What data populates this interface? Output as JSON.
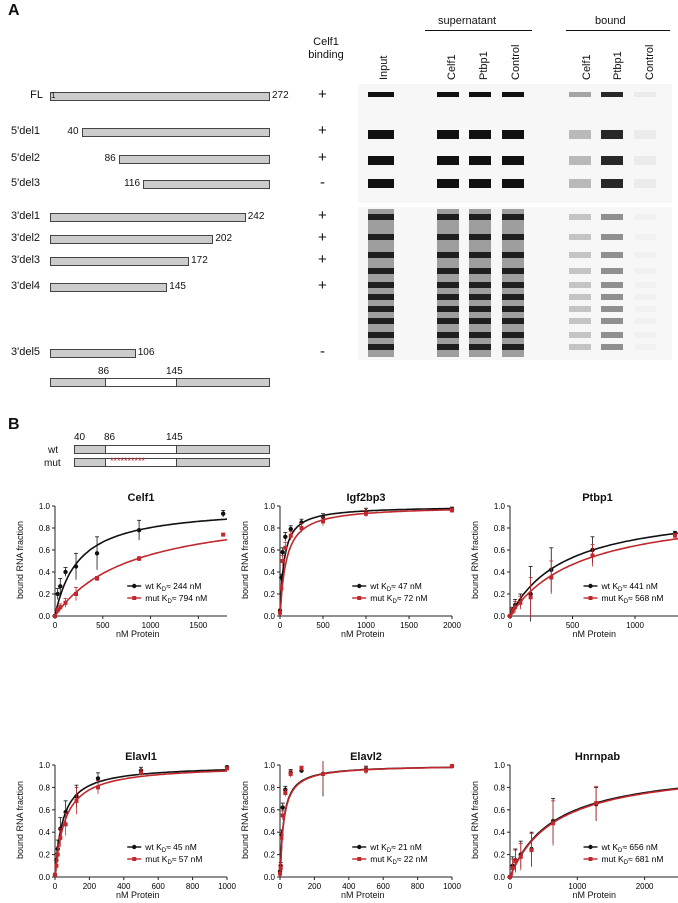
{
  "panel_a": {
    "letter": "A",
    "col_header_binding": "Celf1\nbinding",
    "constructs": [
      {
        "name": "FL",
        "start": 1,
        "end": 272,
        "start_label": "1",
        "end_label": "272",
        "binding": "+"
      },
      {
        "name": "5'del1",
        "start": 40,
        "end": 272,
        "start_label": "40",
        "end_label": "",
        "binding": "+"
      },
      {
        "name": "5'del2",
        "start": 86,
        "end": 272,
        "start_label": "86",
        "end_label": "",
        "binding": "+"
      },
      {
        "name": "5'del3",
        "start": 116,
        "end": 272,
        "start_label": "116",
        "end_label": "",
        "binding": "-"
      },
      {
        "name": "3'del1",
        "start": 1,
        "end": 242,
        "start_label": "",
        "end_label": "242",
        "binding": "+"
      },
      {
        "name": "3'del2",
        "start": 1,
        "end": 202,
        "start_label": "",
        "end_label": "202",
        "binding": "+"
      },
      {
        "name": "3'del3",
        "start": 1,
        "end": 172,
        "start_label": "",
        "end_label": "172",
        "binding": "+"
      },
      {
        "name": "3'del4",
        "start": 1,
        "end": 145,
        "start_label": "",
        "end_label": "145",
        "binding": "+"
      },
      {
        "name": "3'del5",
        "start": 1,
        "end": 106,
        "start_label": "",
        "end_label": "106",
        "binding": "-"
      }
    ],
    "summary_bar": {
      "left": "86",
      "right": "145"
    },
    "gel_headers": {
      "supernatant": "supernatant",
      "bound": "bound",
      "lanes": [
        "Input",
        "Celf1",
        "Ptbp1",
        "Control",
        "Celf1",
        "Ptbp1",
        "Control"
      ]
    }
  },
  "panel_b": {
    "letter": "B",
    "schema": {
      "wt_label": "wt",
      "mut_label": "mut",
      "pos1": "40",
      "pos2": "86",
      "pos3": "145",
      "mut_marks": "**********"
    },
    "colors": {
      "wt": "#111111",
      "mut": "#c0282d"
    },
    "xlabel": "nM Protein",
    "ylabel": "bound RNA fraction",
    "legend_wt": "wt",
    "legend_mut": "mut"
  },
  "chart_data": [
    {
      "type": "scatter",
      "title": "Celf1",
      "xlabel": "nM Protein",
      "ylabel": "bound RNA fraction",
      "xlim": [
        0,
        1800
      ],
      "ylim": [
        0,
        1.0
      ],
      "xticks": [
        0,
        500,
        1000,
        1500
      ],
      "yticks": [
        0,
        0.2,
        0.4,
        0.6,
        0.8,
        1.0
      ],
      "series": [
        {
          "name": "wt",
          "kd_text": "K",
          "kd_sub": "D",
          "kd_val": "≈ 244 nM",
          "kd": 244,
          "bmax": 1.0,
          "x": [
            0,
            28,
            55,
            110,
            220,
            440,
            880,
            1760
          ],
          "y": [
            0.0,
            0.2,
            0.27,
            0.4,
            0.45,
            0.57,
            0.78,
            0.93
          ],
          "err": [
            0,
            0.05,
            0.07,
            0.04,
            0.12,
            0.15,
            0.09,
            0.03
          ]
        },
        {
          "name": "mut",
          "kd_text": "K",
          "kd_sub": "D",
          "kd_val": "≈ 794 nM",
          "kd": 794,
          "bmax": 1.0,
          "x": [
            0,
            28,
            55,
            110,
            220,
            440,
            880,
            1760
          ],
          "y": [
            0.0,
            0.05,
            0.08,
            0.12,
            0.2,
            0.34,
            0.52,
            0.74
          ],
          "err": [
            0,
            0.02,
            0.03,
            0.04,
            0.06,
            0.02,
            0.02,
            0.01
          ]
        }
      ]
    },
    {
      "type": "scatter",
      "title": "Igf2bp3",
      "xlabel": "nM Protein",
      "ylabel": "bound RNA fraction",
      "xlim": [
        0,
        2000
      ],
      "ylim": [
        0,
        1.0
      ],
      "xticks": [
        0,
        500,
        1000,
        1500,
        2000
      ],
      "yticks": [
        0,
        0.2,
        0.4,
        0.6,
        0.8,
        1.0
      ],
      "series": [
        {
          "name": "wt",
          "kd_text": "K",
          "kd_sub": "D",
          "kd_val": "≈ 47 nM",
          "kd": 47,
          "bmax": 1.0,
          "x": [
            0,
            15,
            31,
            62,
            125,
            250,
            500,
            1000,
            2000
          ],
          "y": [
            0.05,
            0.35,
            0.58,
            0.72,
            0.79,
            0.85,
            0.9,
            0.95,
            0.97
          ],
          "err": [
            0,
            0.03,
            0.04,
            0.04,
            0.03,
            0.03,
            0.03,
            0.03,
            0.02
          ]
        },
        {
          "name": "mut",
          "kd_text": "K",
          "kd_sub": "D",
          "kd_val": "≈ 72 nM",
          "kd": 72,
          "bmax": 1.0,
          "x": [
            0,
            15,
            31,
            62,
            125,
            250,
            500,
            1000,
            2000
          ],
          "y": [
            0.03,
            0.25,
            0.5,
            0.62,
            0.73,
            0.8,
            0.86,
            0.93,
            0.96
          ],
          "err": [
            0,
            0.04,
            0.05,
            0.05,
            0.04,
            0.04,
            0.04,
            0.03,
            0.02
          ]
        }
      ]
    },
    {
      "type": "scatter",
      "title": "Ptbp1",
      "xlabel": "nM Protein",
      "ylabel": "bound RNA fraction",
      "xlim": [
        0,
        1400
      ],
      "ylim": [
        0,
        1.0
      ],
      "xticks": [
        0,
        500,
        1000
      ],
      "yticks": [
        0,
        0.2,
        0.4,
        0.6,
        0.8,
        1.0
      ],
      "series": [
        {
          "name": "wt",
          "kd_text": "K",
          "kd_sub": "D",
          "kd_val": "≈ 441 nM",
          "kd": 441,
          "bmax": 1.0,
          "x": [
            0,
            20,
            41,
            83,
            165,
            330,
            660,
            1320
          ],
          "y": [
            0.0,
            0.05,
            0.1,
            0.14,
            0.2,
            0.42,
            0.6,
            0.75
          ],
          "err": [
            0,
            0.03,
            0.05,
            0.06,
            0.25,
            0.2,
            0.12,
            0.02
          ]
        },
        {
          "name": "mut",
          "kd_text": "K",
          "kd_sub": "D",
          "kd_val": "≈ 568 nM",
          "kd": 568,
          "bmax": 1.0,
          "x": [
            0,
            20,
            41,
            83,
            165,
            330,
            660,
            1320
          ],
          "y": [
            0.0,
            0.04,
            0.08,
            0.12,
            0.17,
            0.35,
            0.55,
            0.73
          ],
          "err": [
            0,
            0.03,
            0.05,
            0.06,
            0.18,
            0.15,
            0.1,
            0.02
          ]
        }
      ]
    },
    {
      "type": "scatter",
      "title": "Elavl1",
      "xlabel": "nM Protein",
      "ylabel": "bound RNA fraction",
      "xlim": [
        0,
        1000
      ],
      "ylim": [
        0,
        1.0
      ],
      "xticks": [
        0,
        200,
        400,
        600,
        800,
        1000
      ],
      "yticks": [
        0,
        0.2,
        0.4,
        0.6,
        0.8,
        1.0
      ],
      "series": [
        {
          "name": "wt",
          "kd_text": "K",
          "kd_sub": "D",
          "kd_val": "≈ 45 nM",
          "kd": 45,
          "bmax": 1.0,
          "x": [
            0,
            8,
            16,
            31,
            62,
            125,
            250,
            500,
            1000
          ],
          "y": [
            0.02,
            0.15,
            0.25,
            0.43,
            0.58,
            0.72,
            0.88,
            0.95,
            0.98
          ],
          "err": [
            0,
            0.06,
            0.08,
            0.1,
            0.1,
            0.1,
            0.05,
            0.03,
            0.01
          ]
        },
        {
          "name": "mut",
          "kd_text": "K",
          "kd_sub": "D",
          "kd_val": "≈ 57 nM",
          "kd": 57,
          "bmax": 1.0,
          "x": [
            0,
            8,
            16,
            31,
            62,
            125,
            250,
            500,
            1000
          ],
          "y": [
            0.02,
            0.1,
            0.2,
            0.35,
            0.47,
            0.68,
            0.8,
            0.93,
            0.97
          ],
          "err": [
            0,
            0.05,
            0.07,
            0.08,
            0.1,
            0.12,
            0.06,
            0.03,
            0.01
          ]
        }
      ]
    },
    {
      "type": "scatter",
      "title": "Elavl2",
      "xlabel": "nM Protein",
      "ylabel": "bound RNA fraction",
      "xlim": [
        0,
        1000
      ],
      "ylim": [
        0,
        1.0
      ],
      "xticks": [
        0,
        200,
        400,
        600,
        800,
        1000
      ],
      "yticks": [
        0,
        0.2,
        0.4,
        0.6,
        0.8,
        1.0
      ],
      "series": [
        {
          "name": "wt",
          "kd_text": "K",
          "kd_sub": "D",
          "kd_val": "≈ 21 nM",
          "kd": 21,
          "bmax": 1.0,
          "x": [
            0,
            4,
            8,
            16,
            31,
            62,
            125,
            250,
            500,
            1000
          ],
          "y": [
            0.05,
            0.1,
            0.38,
            0.62,
            0.78,
            0.93,
            0.95,
            0.92,
            0.96,
            0.99
          ],
          "err": [
            0,
            0.03,
            0.04,
            0.04,
            0.03,
            0.03,
            0.02,
            0.2,
            0.03,
            0.01
          ]
        },
        {
          "name": "mut",
          "kd_text": "K",
          "kd_sub": "D",
          "kd_val": "≈ 22 nM",
          "kd": 22,
          "bmax": 1.0,
          "x": [
            0,
            4,
            8,
            16,
            31,
            62,
            125,
            250,
            500,
            1000
          ],
          "y": [
            0.03,
            0.08,
            0.35,
            0.55,
            0.75,
            0.92,
            0.97,
            0.92,
            0.95,
            0.99
          ],
          "err": [
            0,
            0.03,
            0.04,
            0.04,
            0.03,
            0.03,
            0.02,
            0.15,
            0.03,
            0.01
          ]
        }
      ]
    },
    {
      "type": "scatter",
      "title": "Hnrnpab",
      "xlabel": "nM Protein",
      "ylabel": "bound RNA fraction",
      "xlim": [
        0,
        2600
      ],
      "ylim": [
        0,
        1.0
      ],
      "xticks": [
        0,
        1000,
        2000
      ],
      "yticks": [
        0,
        0.2,
        0.4,
        0.6,
        0.8,
        1.0
      ],
      "series": [
        {
          "name": "wt",
          "kd_text": "K",
          "kd_sub": "D",
          "kd_val": "≈ 656 nM",
          "kd": 656,
          "bmax": 1.0,
          "x": [
            0,
            40,
            80,
            160,
            320,
            640,
            1280,
            2560
          ],
          "y": [
            0.0,
            0.1,
            0.15,
            0.2,
            0.25,
            0.5,
            0.65,
            0.8
          ],
          "err": [
            0,
            0.08,
            0.1,
            0.12,
            0.15,
            0.2,
            0.15,
            0.15
          ]
        },
        {
          "name": "mut",
          "kd_text": "K",
          "kd_sub": "D",
          "kd_val": "≈ 681 nM",
          "kd": 681,
          "bmax": 1.0,
          "x": [
            0,
            40,
            80,
            160,
            320,
            640,
            1280,
            2560
          ],
          "y": [
            0.0,
            0.08,
            0.14,
            0.18,
            0.24,
            0.48,
            0.66,
            0.84
          ],
          "err": [
            0,
            0.08,
            0.1,
            0.12,
            0.15,
            0.2,
            0.15,
            0.1
          ]
        }
      ]
    }
  ]
}
